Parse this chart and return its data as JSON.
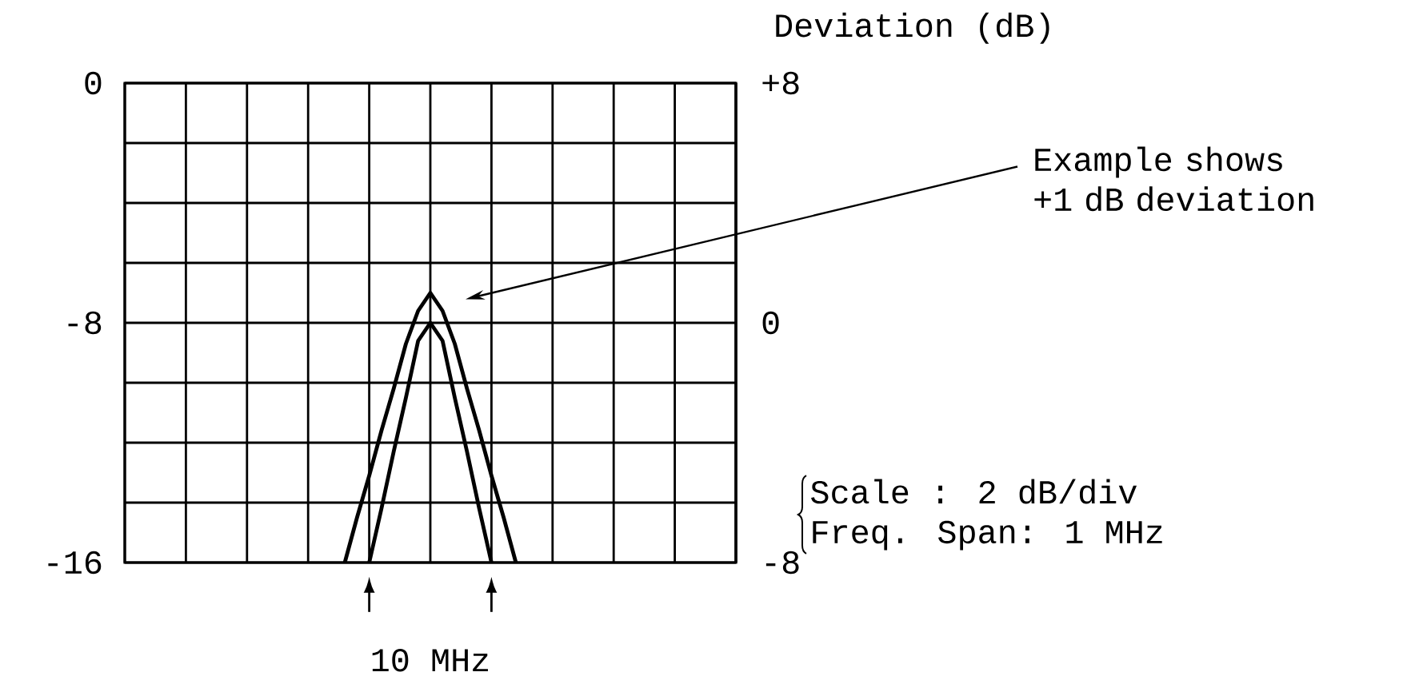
{
  "chart_data": {
    "type": "line",
    "y2label": "Deviation (dB)",
    "annotations": [
      "Example shows +1 dB deviation",
      "Scale : 2 dB/div",
      "Freq. Span: 1 MHz",
      "10 MHz"
    ],
    "categories": [
      null,
      null,
      null,
      null,
      null,
      null,
      null,
      null,
      null,
      null,
      null,
      null,
      null,
      null,
      null,
      null,
      null,
      null,
      null,
      null,
      null,
      null,
      null,
      null,
      null,
      null,
      null,
      null,
      null,
      null,
      null,
      null,
      null,
      null,
      null,
      null,
      null,
      null,
      null,
      null,
      null,
      null,
      null,
      null,
      null,
      null,
      null,
      null,
      null,
      null,
      null
    ],
    "ylim": [
      -16,
      0
    ],
    "yticks": [
      -16,
      {
        "value": -14,
        "label": null
      },
      {
        "value": -12,
        "label": null
      },
      {
        "value": -10,
        "label": null
      },
      -8,
      {
        "value": -6,
        "label": null
      },
      {
        "value": -4,
        "label": null
      },
      {
        "value": -2,
        "label": null
      },
      0
    ],
    "y2lim": [
      -8,
      8
    ],
    "y2ticks": [
      -8,
      0,
      {
        "value": 8,
        "label": "+8"
      }
    ],
    "tick_labels": "y",
    "grid": true,
    "marker": "none",
    "line_style": "solid",
    "series": [
      {
        "color": "#000000",
        "values": [
          null,
          null,
          null,
          null,
          null,
          null,
          null,
          null,
          null,
          null,
          null,
          null,
          null,
          null,
          null,
          null,
          null,
          null,
          -16,
          -14.5,
          -13.1,
          -11.6,
          -10.2,
          -8.7,
          -7.6,
          -7,
          -7.6,
          -8.7,
          -10.2,
          -11.6,
          -13.1,
          -14.5,
          -16,
          null,
          null,
          null,
          null,
          null,
          null,
          null,
          null,
          null,
          null,
          null,
          null,
          null,
          null,
          null,
          null,
          null,
          null
        ]
      },
      {
        "color": "#000000",
        "values": [
          null,
          null,
          null,
          null,
          null,
          null,
          null,
          null,
          null,
          null,
          null,
          null,
          null,
          null,
          null,
          null,
          null,
          null,
          null,
          null,
          -16,
          -14.2,
          -12.3,
          -10.5,
          -8.6,
          -8,
          -8.6,
          -10.5,
          -12.3,
          -14.2,
          -16,
          null,
          null,
          null,
          null,
          null,
          null,
          null,
          null,
          null,
          null,
          null,
          null,
          null,
          null,
          null,
          null,
          null,
          null,
          null,
          null
        ]
      }
    ]
  }
}
